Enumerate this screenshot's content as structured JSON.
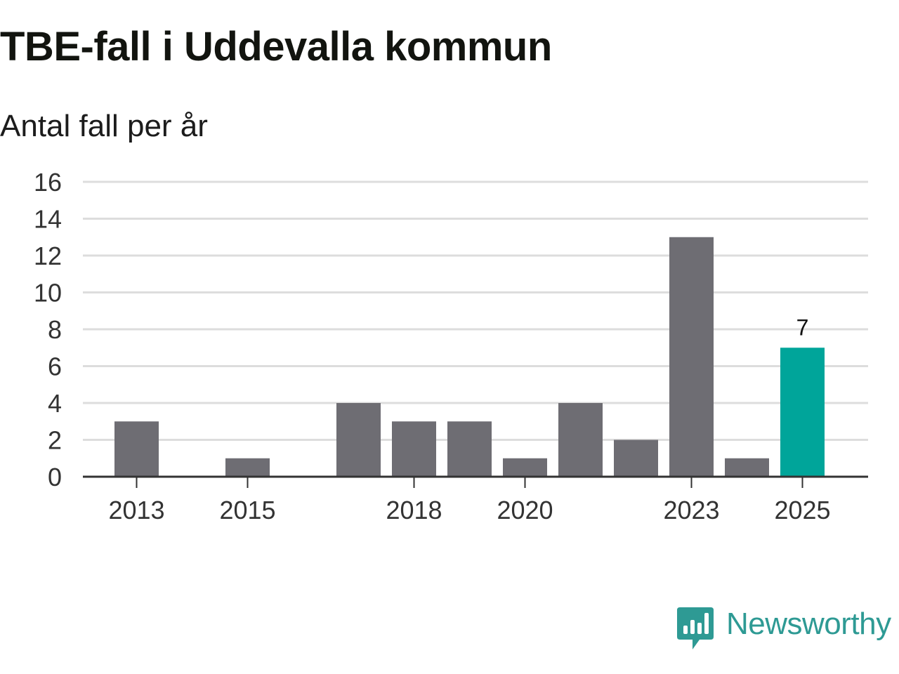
{
  "title": "TBE-fall i Uddevalla kommun",
  "subtitle": "Antal fall per år",
  "brand": {
    "name": "Newsworthy",
    "color": "#2e9a94",
    "icon": "newsworthy-logo-icon"
  },
  "colors": {
    "bar": "#6e6d73",
    "highlight": "#00a59a",
    "grid": "#dddddd",
    "axis": "#333333",
    "tick_text": "#333333"
  },
  "chart_data": {
    "type": "bar",
    "title": "TBE-fall i Uddevalla kommun",
    "subtitle": "Antal fall per år",
    "xlabel": "",
    "ylabel": "",
    "categories": [
      "2013",
      "2014",
      "2015",
      "2016",
      "2017",
      "2018",
      "2019",
      "2020",
      "2021",
      "2022",
      "2023",
      "2024",
      "2025"
    ],
    "values": [
      3,
      0,
      1,
      0,
      4,
      3,
      3,
      1,
      4,
      2,
      13,
      1,
      7
    ],
    "highlight_index": 12,
    "data_labels": [
      {
        "index": 12,
        "text": "7"
      }
    ],
    "x_tick_labels": [
      "2013",
      "2015",
      "2018",
      "2020",
      "2023",
      "2025"
    ],
    "y_ticks": [
      0,
      2,
      4,
      6,
      8,
      10,
      12,
      14,
      16
    ],
    "ylim": [
      0,
      16
    ],
    "grid": true,
    "legend": "none"
  }
}
